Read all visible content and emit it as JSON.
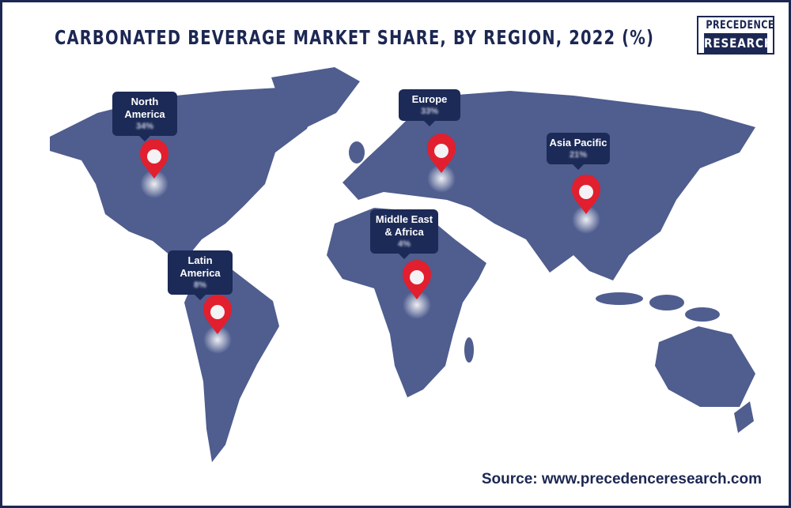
{
  "title": "CARBONATED BEVERAGE MARKET SHARE, BY REGION, 2022 (%)",
  "logo": {
    "line1": "PRECEDENCE",
    "line2": "RESEARCH"
  },
  "regions": [
    {
      "name": "North America",
      "value": "34%"
    },
    {
      "name": "Europe",
      "value": "33%"
    },
    {
      "name": "Asia Pacific",
      "value": "21%"
    },
    {
      "name": "Middle East & Africa",
      "value": "4%"
    },
    {
      "name": "Latin America",
      "value": "8%"
    }
  ],
  "source": "Source: www.precedenceresearch.com"
}
